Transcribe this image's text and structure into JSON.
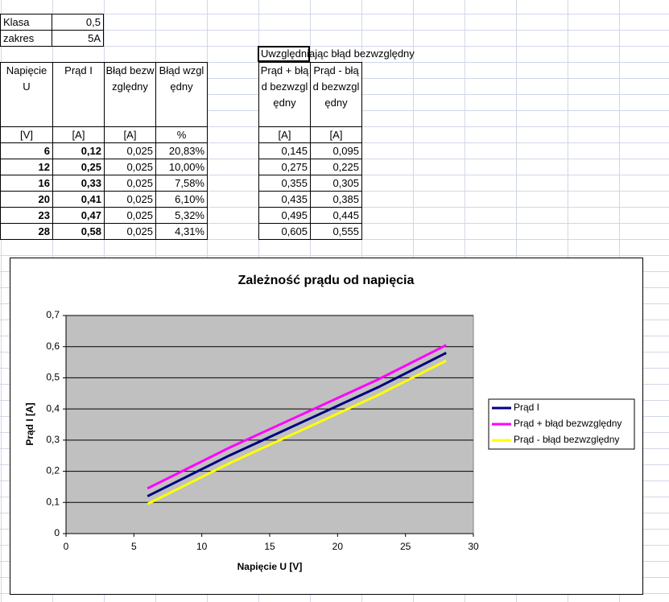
{
  "sheet": {
    "info": [
      [
        "Klasa",
        "0,5"
      ],
      [
        "zakres",
        "5A"
      ]
    ],
    "note": "Uwzględniając błąd bezwzględny",
    "table1": {
      "header": [
        "Napięcie U",
        "Prąd I",
        "Błąd bezwzględny",
        "Błąd względny"
      ],
      "units": [
        "[V]",
        "[A]",
        "[A]",
        "%"
      ],
      "rows": [
        [
          "6",
          "0,12",
          "0,025",
          "20,83%"
        ],
        [
          "12",
          "0,25",
          "0,025",
          "10,00%"
        ],
        [
          "16",
          "0,33",
          "0,025",
          "7,58%"
        ],
        [
          "20",
          "0,41",
          "0,025",
          "6,10%"
        ],
        [
          "23",
          "0,47",
          "0,025",
          "5,32%"
        ],
        [
          "28",
          "0,58",
          "0,025",
          "4,31%"
        ]
      ]
    },
    "table2": {
      "header": [
        "Prąd + błąd bezwzględny",
        "Prąd - błąd bezwzględny"
      ],
      "units": [
        "[A]",
        "[A]"
      ],
      "rows": [
        [
          "0,145",
          "0,095"
        ],
        [
          "0,275",
          "0,225"
        ],
        [
          "0,355",
          "0,305"
        ],
        [
          "0,435",
          "0,385"
        ],
        [
          "0,495",
          "0,445"
        ],
        [
          "0,605",
          "0,555"
        ]
      ]
    }
  },
  "chart_data": {
    "type": "line",
    "title": "Zależność prądu od napięcia",
    "x_label": "Napięcie U [V]",
    "y_label": "Prąd I [A]",
    "x": [
      6,
      12,
      16,
      20,
      23,
      28
    ],
    "series": [
      {
        "name": "Prąd I",
        "color": "#000080",
        "values": [
          0.12,
          0.25,
          0.33,
          0.41,
          0.47,
          0.58
        ]
      },
      {
        "name": "Prąd + błąd bezwzględny",
        "color": "#ff00ff",
        "values": [
          0.145,
          0.275,
          0.355,
          0.435,
          0.495,
          0.605
        ]
      },
      {
        "name": "Prąd - błąd bezwzględny",
        "color": "#ffff00",
        "values": [
          0.095,
          0.225,
          0.305,
          0.385,
          0.445,
          0.555
        ]
      }
    ],
    "xlim": [
      0,
      30
    ],
    "xticks": [
      0,
      5,
      10,
      15,
      20,
      25,
      30
    ],
    "ylim": [
      0,
      0.7
    ],
    "yticks": [
      0,
      {
        "value": 0.1,
        "label": "0,1"
      },
      {
        "value": 0.2,
        "label": "0,2"
      },
      {
        "value": 0.3,
        "label": "0,3"
      },
      {
        "value": 0.4,
        "label": "0,4"
      },
      {
        "value": 0.5,
        "label": "0,5"
      },
      {
        "value": 0.6,
        "label": "0,6"
      },
      {
        "value": 0.7,
        "label": "0,7"
      }
    ],
    "grid": true,
    "legend": "right",
    "plot_background": "#c0c0c0"
  }
}
